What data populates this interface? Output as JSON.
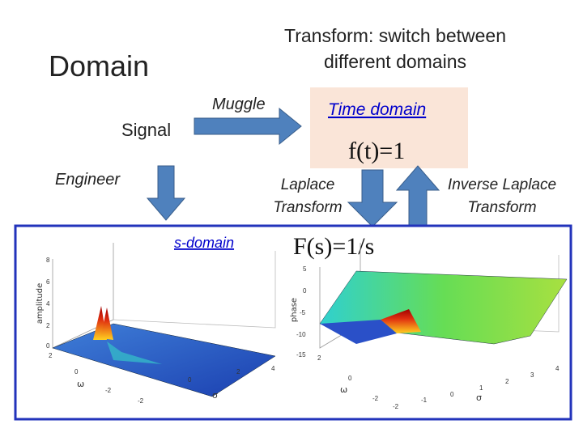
{
  "title": "Domain",
  "transform_note": {
    "lines": [
      "Transform: switch between",
      "different domains"
    ]
  },
  "labels": {
    "signal": "Signal",
    "muggle": "Muggle",
    "engineer": "Engineer",
    "time_domain": "Time domain",
    "time_formula": "f(t)=1",
    "laplace": [
      "Laplace",
      "Transform"
    ],
    "inverse_laplace": [
      "Inverse Laplace",
      "Transform"
    ],
    "s_domain": "s-domain",
    "s_formula": "F(s)=1/s"
  },
  "plots": [
    {
      "y_label": "amplitude",
      "y_ticks": [
        "8",
        "6",
        "4",
        "2",
        "0"
      ],
      "omega_label": "ω",
      "omega_ticks": [
        "2",
        "0",
        "-2"
      ],
      "sigma_label": "σ",
      "sigma_ticks": [
        "-2",
        "0",
        "2",
        "4"
      ]
    },
    {
      "y_label": "phase",
      "y_ticks": [
        "5",
        "0",
        "-5",
        "-10",
        "-15"
      ],
      "omega_label": "ω",
      "omega_ticks": [
        "2",
        "0",
        "-2"
      ],
      "sigma_label": "σ",
      "sigma_ticks": [
        "-2",
        "-1",
        "0",
        "1",
        "2",
        "3",
        "4"
      ]
    }
  ]
}
